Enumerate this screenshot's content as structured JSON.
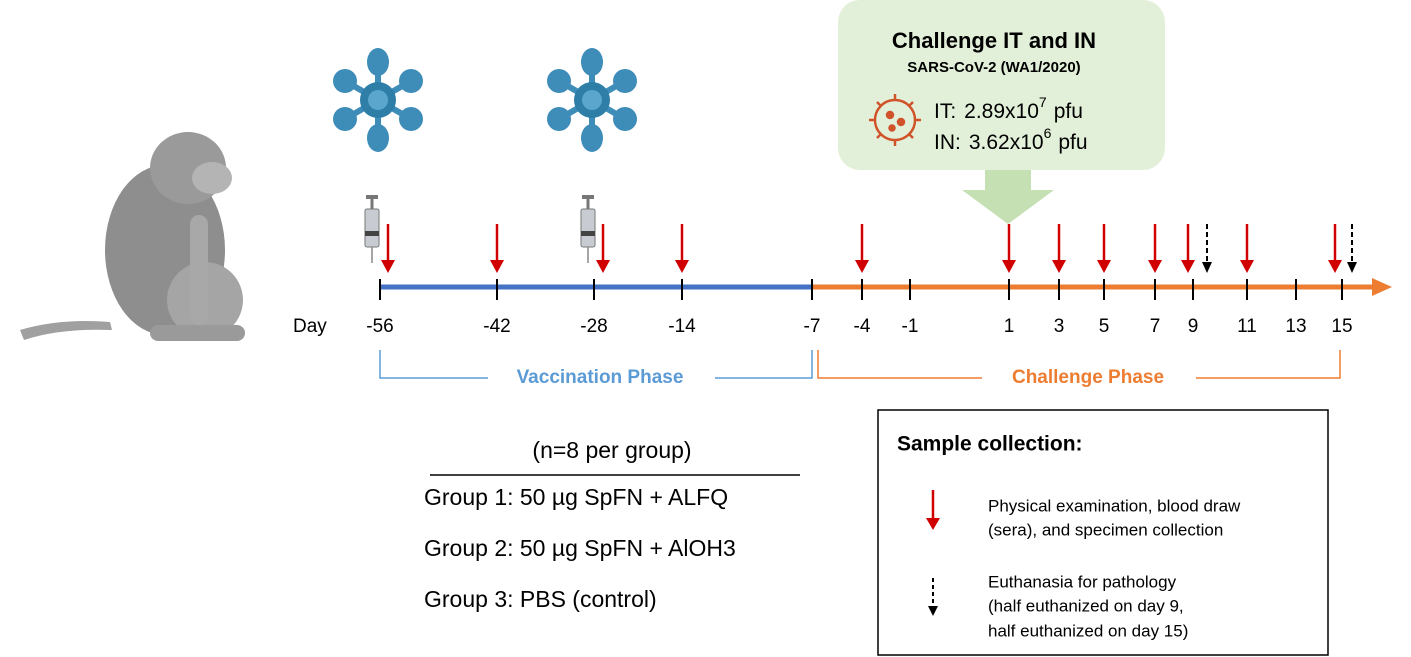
{
  "timeline": {
    "axis_label": "Day",
    "days": [
      -56,
      -42,
      -28,
      -14,
      -7,
      -4,
      -1,
      1,
      3,
      5,
      7,
      9,
      11,
      13,
      15
    ]
  },
  "callout": {
    "title": "Challenge IT and IN",
    "subtitle": "SARS-CoV-2 (WA1/2020)",
    "doses": [
      {
        "route": "IT:",
        "base": "2.89x10",
        "exponent": "7",
        "unit": "pfu"
      },
      {
        "route": "IN:",
        "base": "3.62x10",
        "exponent": "6",
        "unit": "pfu"
      }
    ]
  },
  "phases": [
    "Vaccination Phase",
    "Challenge Phase"
  ],
  "groups": {
    "header": "(n=8 per group)",
    "items": [
      "Group 1: 50 µg SpFN + ALFQ",
      "Group 2: 50 µg SpFN + AlOH3",
      "Group 3: PBS (control)"
    ]
  },
  "legend": {
    "title": "Sample collection:",
    "items": [
      {
        "lines": [
          "Physical examination, blood draw",
          "(sera), and specimen collection"
        ]
      },
      {
        "lines": [
          "Euthanasia for pathology",
          "(half euthanized on day 9,",
          "half euthanized on day 15)"
        ]
      }
    ]
  }
}
